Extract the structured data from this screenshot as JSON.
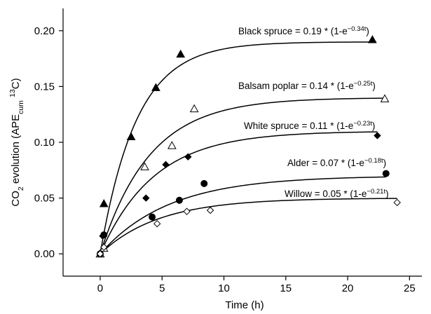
{
  "chart_data": {
    "type": "scatter",
    "xlabel": "Time (h)",
    "ylabel": "CO2 evolution (APEcum 13C)",
    "xlim": [
      -3,
      26
    ],
    "ylim": [
      -0.02,
      0.22
    ],
    "xticks": [
      0,
      5,
      10,
      15,
      20,
      25
    ],
    "yticks": [
      0.0,
      0.05,
      0.1,
      0.15,
      0.2
    ],
    "xtick_labels": [
      "0",
      "5",
      "10",
      "15",
      "20",
      "25"
    ],
    "ytick_labels": [
      "0.00",
      "0.05",
      "0.10",
      "0.15",
      "0.20"
    ],
    "grid": false,
    "series": [
      {
        "name": "Black spruce",
        "equation_prefix": "Black spruce = 0.19 * (1-e",
        "exponent": "−0.34t",
        "equation_suffix": ")",
        "a": 0.19,
        "k": 0.34,
        "marker": "triangle-filled",
        "points": [
          [
            0,
            0.0
          ],
          [
            0.3,
            0.045
          ],
          [
            2.5,
            0.105
          ],
          [
            4.5,
            0.149
          ],
          [
            6.5,
            0.179
          ],
          [
            22,
            0.192
          ]
        ]
      },
      {
        "name": "Balsam poplar",
        "equation_prefix": "Balsam poplar = 0.14 * (1-e",
        "exponent": "−0.25t",
        "equation_suffix": ")",
        "a": 0.14,
        "k": 0.25,
        "marker": "triangle-open",
        "points": [
          [
            0,
            0.0
          ],
          [
            0.3,
            0.005
          ],
          [
            3.6,
            0.078
          ],
          [
            5.8,
            0.097
          ],
          [
            7.6,
            0.13
          ],
          [
            23,
            0.139
          ]
        ]
      },
      {
        "name": "White spruce",
        "equation_prefix": "White spruce = 0.11 * (1-e",
        "exponent": "−0.23t",
        "equation_suffix": ")",
        "a": 0.11,
        "k": 0.23,
        "marker": "diamond-filled",
        "points": [
          [
            0,
            0.0
          ],
          [
            0.2,
            0.016
          ],
          [
            3.7,
            0.05
          ],
          [
            5.3,
            0.08
          ],
          [
            7.1,
            0.087
          ],
          [
            22.4,
            0.106
          ]
        ]
      },
      {
        "name": "Alder",
        "equation_prefix": "Alder = 0.07 * (1-e",
        "exponent": "−0.18t",
        "equation_suffix": ")",
        "a": 0.07,
        "k": 0.18,
        "marker": "circle-filled",
        "points": [
          [
            0,
            0.0
          ],
          [
            0.3,
            0.017
          ],
          [
            4.2,
            0.033
          ],
          [
            6.4,
            0.048
          ],
          [
            8.4,
            0.063
          ],
          [
            23.1,
            0.072
          ]
        ]
      },
      {
        "name": "Willow",
        "equation_prefix": "Willow = 0.05 * (1-e",
        "exponent": "−0.21t",
        "equation_suffix": ")",
        "a": 0.05,
        "k": 0.21,
        "marker": "diamond-open",
        "points": [
          [
            0,
            0.0
          ],
          [
            0.3,
            0.006
          ],
          [
            4.6,
            0.027
          ],
          [
            7.0,
            0.038
          ],
          [
            8.9,
            0.039
          ],
          [
            24,
            0.046
          ]
        ]
      }
    ]
  }
}
